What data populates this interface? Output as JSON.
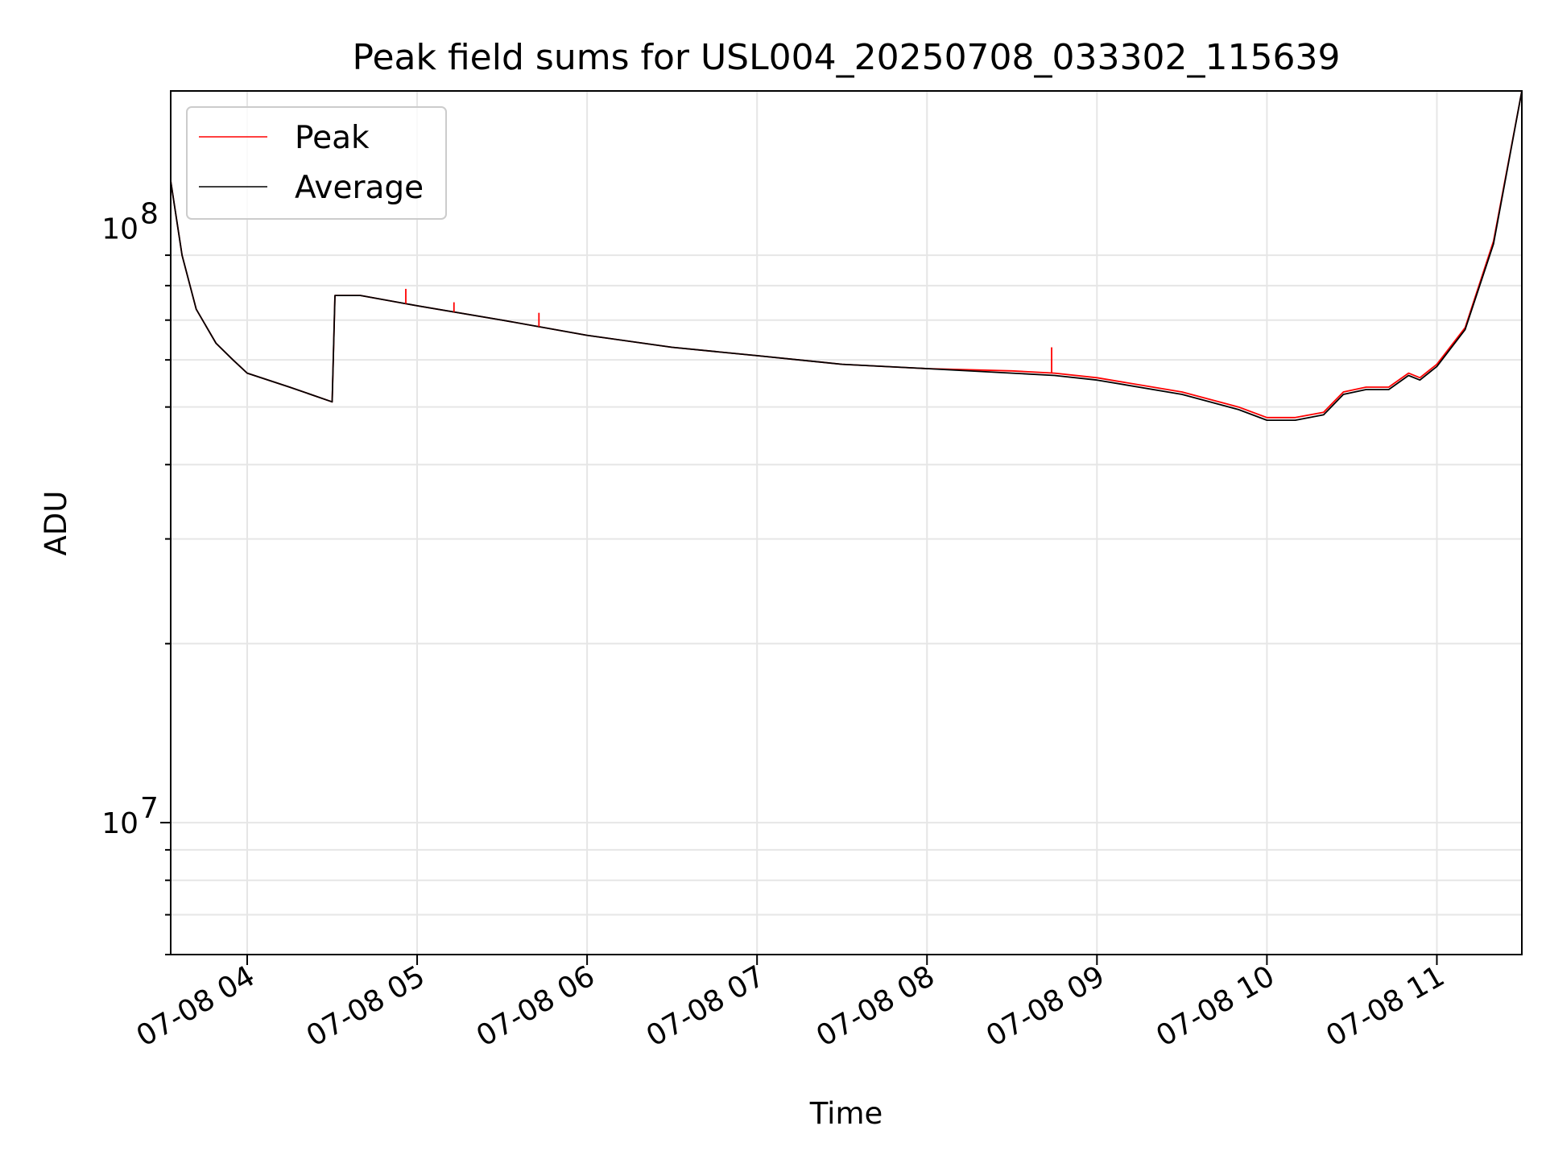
{
  "chart_data": {
    "type": "line",
    "title": "Peak field sums for USL004_20250708_033302_115639",
    "xlabel": "Time",
    "ylabel": "ADU",
    "yscale": "log",
    "grid": true,
    "legend_position": "top-left",
    "xlim": [
      "2025-07-08 03:33",
      "2025-07-08 11:30"
    ],
    "ylim": [
      6000000,
      170000000
    ],
    "x_ticks": [
      "07-08 04",
      "07-08 05",
      "07-08 06",
      "07-08 07",
      "07-08 08",
      "07-08 09",
      "07-08 10",
      "07-08 11"
    ],
    "y_ticks": [
      {
        "value": 10000000,
        "base": "10",
        "exp": "7"
      },
      {
        "value": 100000000,
        "base": "10",
        "exp": "8"
      }
    ],
    "x": [
      "2025-07-08 03:33",
      "2025-07-08 03:37",
      "2025-07-08 03:42",
      "2025-07-08 03:49",
      "2025-07-08 03:55",
      "2025-07-08 04:00",
      "2025-07-08 04:15",
      "2025-07-08 04:30",
      "2025-07-08 04:31",
      "2025-07-08 04:40",
      "2025-07-08 05:00",
      "2025-07-08 05:30",
      "2025-07-08 06:00",
      "2025-07-08 06:30",
      "2025-07-08 07:00",
      "2025-07-08 07:30",
      "2025-07-08 08:00",
      "2025-07-08 08:30",
      "2025-07-08 08:45",
      "2025-07-08 09:00",
      "2025-07-08 09:30",
      "2025-07-08 09:50",
      "2025-07-08 10:00",
      "2025-07-08 10:10",
      "2025-07-08 10:20",
      "2025-07-08 10:27",
      "2025-07-08 10:35",
      "2025-07-08 10:43",
      "2025-07-08 10:50",
      "2025-07-08 10:54",
      "2025-07-08 11:00",
      "2025-07-08 11:10",
      "2025-07-08 11:20",
      "2025-07-08 11:30"
    ],
    "series": [
      {
        "name": "Peak",
        "color": "#ff0000",
        "values": [
          120000000,
          90000000,
          73000000,
          64000000,
          60000000,
          57000000,
          54000000,
          51000000,
          77000000,
          77000000,
          74000000,
          70000000,
          66000000,
          63000000,
          61000000,
          59000000,
          58000000,
          57500000,
          57000000,
          56000000,
          53000000,
          50000000,
          48000000,
          48000000,
          49000000,
          53000000,
          54000000,
          54000000,
          57000000,
          56000000,
          59000000,
          68000000,
          95000000,
          170000000
        ]
      },
      {
        "name": "Average",
        "color": "#000000",
        "values": [
          120000000,
          90000000,
          73000000,
          64000000,
          60000000,
          57000000,
          54000000,
          51000000,
          77000000,
          77000000,
          74000000,
          70000000,
          66000000,
          63000000,
          61000000,
          59000000,
          58000000,
          57000000,
          56500000,
          55500000,
          52500000,
          49500000,
          47500000,
          47500000,
          48500000,
          52500000,
          53500000,
          53500000,
          56500000,
          55500000,
          58500000,
          67500000,
          94000000,
          170000000
        ]
      }
    ],
    "spikes": [
      {
        "x": "2025-07-08 04:56",
        "value": 79000000
      },
      {
        "x": "2025-07-08 05:13",
        "value": 75000000
      },
      {
        "x": "2025-07-08 05:43",
        "value": 72000000
      },
      {
        "x": "2025-07-08 08:44",
        "value": 63000000
      }
    ]
  }
}
